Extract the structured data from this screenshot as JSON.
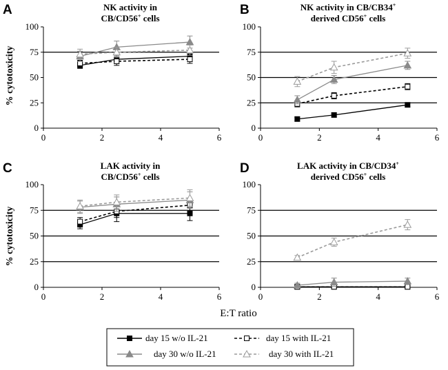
{
  "chart_data": [
    {
      "type": "line",
      "panel": "A",
      "title_lines": [
        "NK activity in",
        "CB/CD56+ cells"
      ],
      "ylabel": "% cytotoxicity",
      "xlabel": "",
      "xlim": [
        0,
        6
      ],
      "ylim": [
        0,
        100
      ],
      "xticks": [
        0,
        2,
        4,
        6
      ],
      "yticks": [
        0,
        25,
        50,
        75,
        100
      ],
      "gridlines_y": [
        75
      ],
      "series": [
        {
          "key": "d15_wo",
          "x": [
            1.25,
            2.5,
            5
          ],
          "y": [
            62,
            68,
            71
          ],
          "err": [
            3,
            4,
            5
          ]
        },
        {
          "key": "d15_with",
          "x": [
            1.25,
            2.5,
            5
          ],
          "y": [
            64,
            66,
            68
          ],
          "err": [
            3,
            4,
            4
          ]
        },
        {
          "key": "d30_wo",
          "x": [
            1.25,
            2.5,
            5
          ],
          "y": [
            71,
            80,
            85
          ],
          "err": [
            5,
            6,
            6
          ]
        },
        {
          "key": "d30_with",
          "x": [
            1.25,
            2.5,
            5
          ],
          "y": [
            73,
            75,
            77
          ],
          "err": [
            5,
            5,
            5
          ]
        }
      ]
    },
    {
      "type": "line",
      "panel": "B",
      "title_lines": [
        "NK activity in CB/CB34+",
        "derived CD56+ cells"
      ],
      "ylabel": "",
      "xlabel": "",
      "xlim": [
        0,
        6
      ],
      "ylim": [
        0,
        100
      ],
      "xticks": [
        0,
        2,
        4,
        6
      ],
      "yticks": [
        0,
        25,
        50,
        75,
        100
      ],
      "gridlines_y": [
        25,
        50,
        75
      ],
      "series": [
        {
          "key": "d15_wo",
          "x": [
            1.25,
            2.5,
            5
          ],
          "y": [
            9,
            13,
            23
          ],
          "err": [
            2,
            2,
            2
          ]
        },
        {
          "key": "d15_with",
          "x": [
            1.25,
            2.5,
            5
          ],
          "y": [
            24,
            32,
            41
          ],
          "err": [
            3,
            3,
            3
          ]
        },
        {
          "key": "d30_wo",
          "x": [
            1.25,
            2.5,
            5
          ],
          "y": [
            28,
            48,
            62
          ],
          "err": [
            4,
            4,
            4
          ]
        },
        {
          "key": "d30_with",
          "x": [
            1.25,
            2.5,
            5
          ],
          "y": [
            46,
            60,
            74
          ],
          "err": [
            5,
            6,
            5
          ]
        }
      ]
    },
    {
      "type": "line",
      "panel": "C",
      "title_lines": [
        "LAK activity in",
        "CB/CD56+ cells"
      ],
      "ylabel": "% cytotoxicity",
      "xlabel": "",
      "xlim": [
        0,
        6
      ],
      "ylim": [
        0,
        100
      ],
      "xticks": [
        0,
        2,
        4,
        6
      ],
      "yticks": [
        0,
        25,
        50,
        75,
        100
      ],
      "gridlines_y": [
        25,
        50,
        75
      ],
      "series": [
        {
          "key": "d15_wo",
          "x": [
            1.25,
            2.5,
            5
          ],
          "y": [
            61,
            72,
            72
          ],
          "err": [
            4,
            8,
            7
          ]
        },
        {
          "key": "d15_with",
          "x": [
            1.25,
            2.5,
            5
          ],
          "y": [
            64,
            74,
            80
          ],
          "err": [
            4,
            6,
            6
          ]
        },
        {
          "key": "d30_wo",
          "x": [
            1.25,
            2.5,
            5
          ],
          "y": [
            78,
            81,
            85
          ],
          "err": [
            6,
            7,
            8
          ]
        },
        {
          "key": "d30_with",
          "x": [
            1.25,
            2.5,
            5
          ],
          "y": [
            79,
            83,
            87
          ],
          "err": [
            6,
            7,
            8
          ]
        }
      ]
    },
    {
      "type": "line",
      "panel": "D",
      "title_lines": [
        "LAK activity in CB/CD34+",
        "derived CD56+ cells"
      ],
      "ylabel": "",
      "xlabel": "",
      "xlim": [
        0,
        6
      ],
      "ylim": [
        0,
        100
      ],
      "xticks": [
        0,
        2,
        4,
        6
      ],
      "yticks": [
        0,
        25,
        50,
        75,
        100
      ],
      "gridlines_y": [
        25,
        50,
        75
      ],
      "series": [
        {
          "key": "d15_wo",
          "x": [
            1.25,
            2.5,
            5
          ],
          "y": [
            0.5,
            0.5,
            0.5
          ],
          "err": [
            1,
            1,
            1
          ]
        },
        {
          "key": "d15_with",
          "x": [
            1.25,
            2.5,
            5
          ],
          "y": [
            0.5,
            0.5,
            0.5
          ],
          "err": [
            1,
            1,
            1
          ]
        },
        {
          "key": "d30_wo",
          "x": [
            1.25,
            2.5,
            5
          ],
          "y": [
            2,
            5,
            6
          ],
          "err": [
            2,
            4,
            3
          ]
        },
        {
          "key": "d30_with",
          "x": [
            1.25,
            2.5,
            5
          ],
          "y": [
            29,
            44,
            61
          ],
          "err": [
            2,
            4,
            5
          ]
        }
      ]
    }
  ],
  "shared_xlabel": "E:T ratio",
  "legend": [
    {
      "key": "d15_wo",
      "label": "day 15 w/o IL-21"
    },
    {
      "key": "d15_with",
      "label": "day 15 with IL-21"
    },
    {
      "key": "d30_wo",
      "label": "day 30 w/o IL-21"
    },
    {
      "key": "d30_with",
      "label": "day 30 with IL-21"
    }
  ],
  "series_styles": {
    "d15_wo": {
      "color": "#000000",
      "marker": "square-filled",
      "dash": "solid"
    },
    "d15_with": {
      "color": "#000000",
      "marker": "square-open",
      "dash": "dashed"
    },
    "d30_wo": {
      "color": "#8a8a8a",
      "marker": "triangle-filled",
      "dash": "solid"
    },
    "d30_with": {
      "color": "#9a9a9a",
      "marker": "triangle-open",
      "dash": "dashed"
    }
  }
}
